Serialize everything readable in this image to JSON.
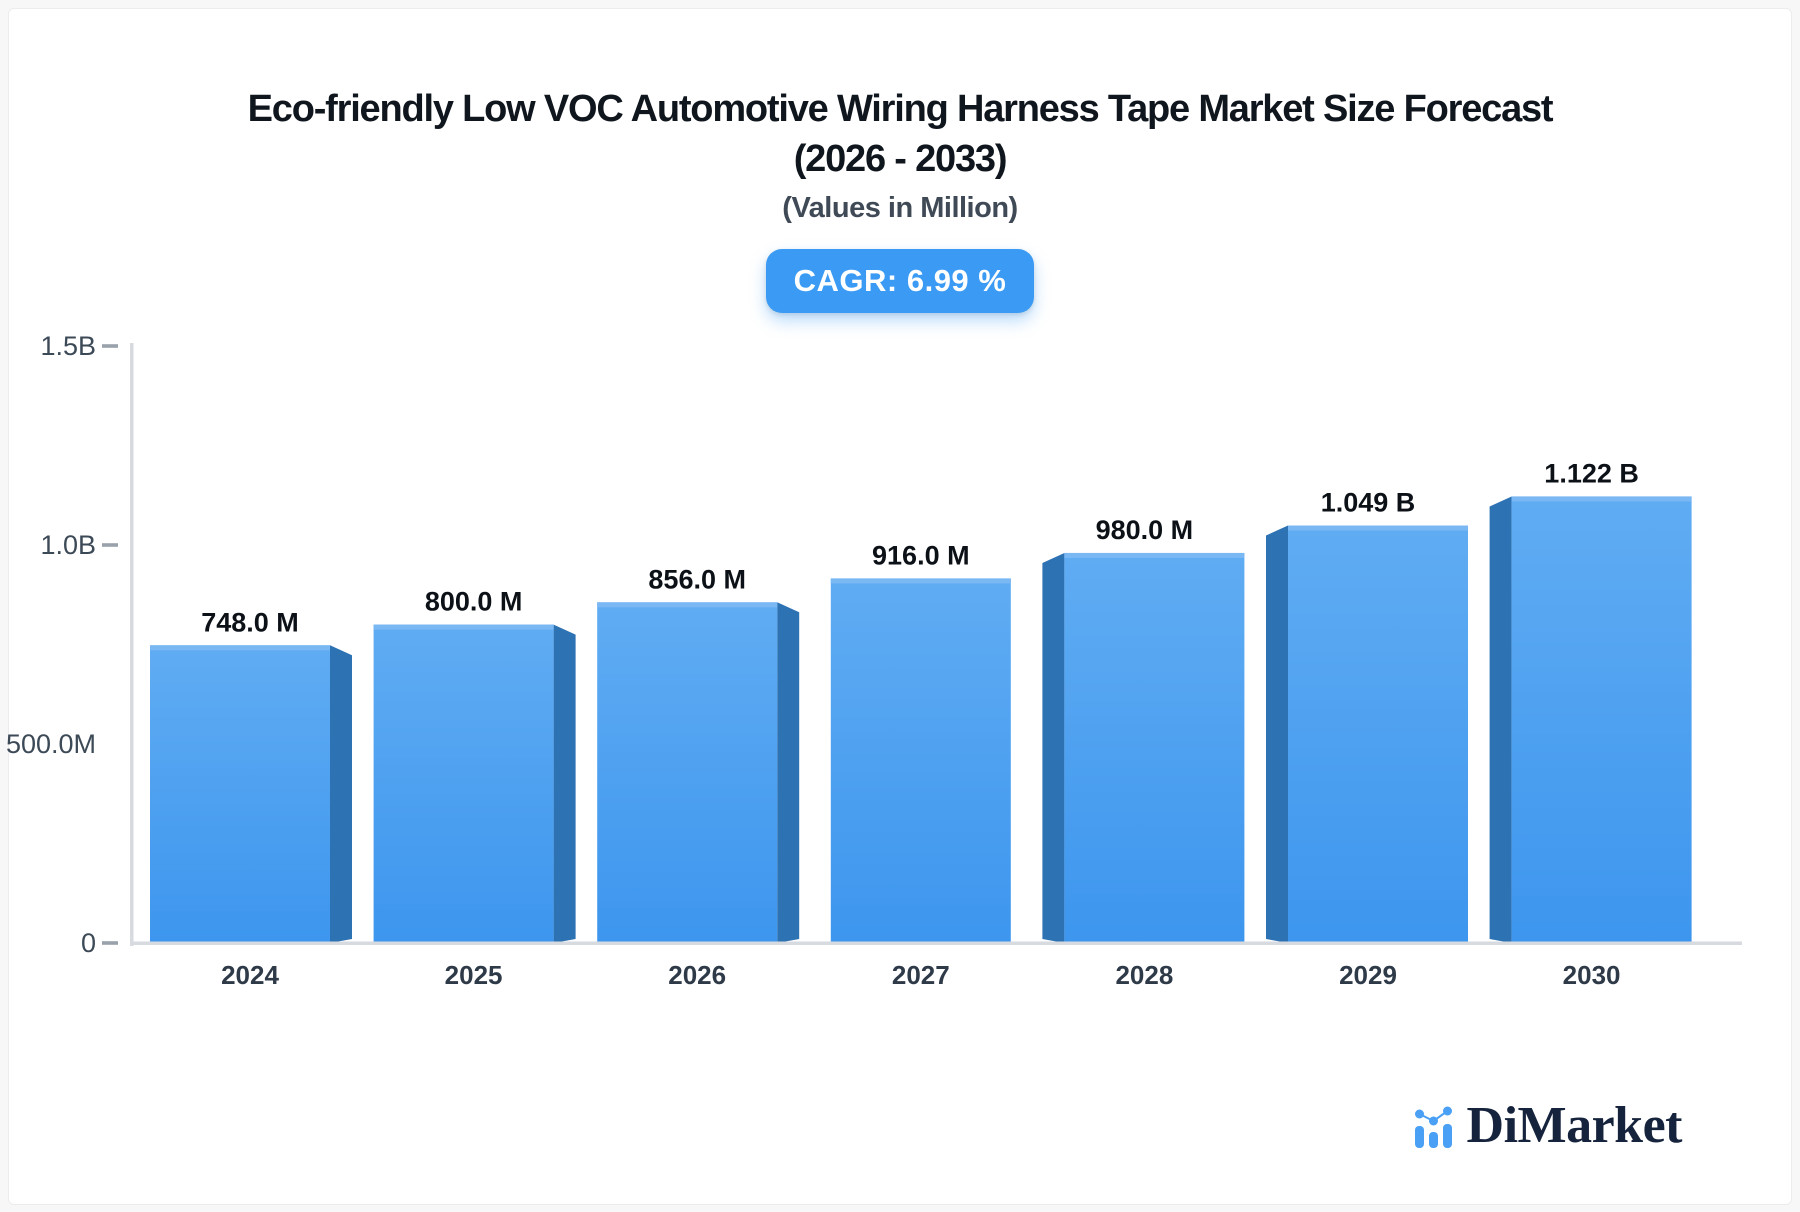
{
  "colors": {
    "page_bg": "#f7f7f8",
    "card_bg": "#ffffff",
    "bar_front_top": "#60acf3",
    "bar_front_bottom": "#3d96ee",
    "bar_top_highlight": "#7ab8f4",
    "bar_side": "#2d72b3",
    "axis_line": "#d7dadf",
    "tick_dash": "#99a1ab",
    "badge_bg": "#3b9bf4",
    "badge_text": "#ffffff",
    "title_text": "#10161d",
    "subtitle_text": "#3f4a56",
    "y_axis_label": "#3c4956",
    "x_axis_label": "#2e3a48",
    "value_label": "#0c1117",
    "logo_blue": "#4aa0f5",
    "logo_text": "#16233c"
  },
  "header": {
    "title_line1": "Eco-friendly Low VOC Automotive Wiring Harness Tape Market Size Forecast",
    "title_line2": "(2026 - 2033)",
    "subtitle": "(Values in Million)",
    "cagr_badge": "CAGR: 6.99 %"
  },
  "chart_data": {
    "type": "bar",
    "title": "Eco-friendly Low VOC Automotive Wiring Harness Tape Market Size Forecast (2026 - 2033)",
    "subtitle": "(Values in Million)",
    "categories": [
      "2024",
      "2025",
      "2026",
      "2027",
      "2028",
      "2029",
      "2030"
    ],
    "values_millions": [
      748,
      800,
      856,
      916,
      980,
      1049,
      1122
    ],
    "value_labels": [
      "748.0 M",
      "800.0 M",
      "856.0 M",
      "916.0 M",
      "980.0 M",
      "1.049 B",
      "1.122 B"
    ],
    "xlabel": "",
    "ylabel": "",
    "ylim_millions": [
      0,
      1500
    ],
    "yticks": [
      {
        "value": 1500,
        "label": "1.5B",
        "dash": true
      },
      {
        "value": 1000,
        "label": "1.0B",
        "dash": true
      },
      {
        "value": 500,
        "label": "500.0M",
        "dash": false
      },
      {
        "value": 0,
        "label": "0",
        "dash": true
      }
    ],
    "grid": "off",
    "legend": "none",
    "cagr_percent": 6.99
  },
  "footer": {
    "brand": "DiMarket"
  }
}
